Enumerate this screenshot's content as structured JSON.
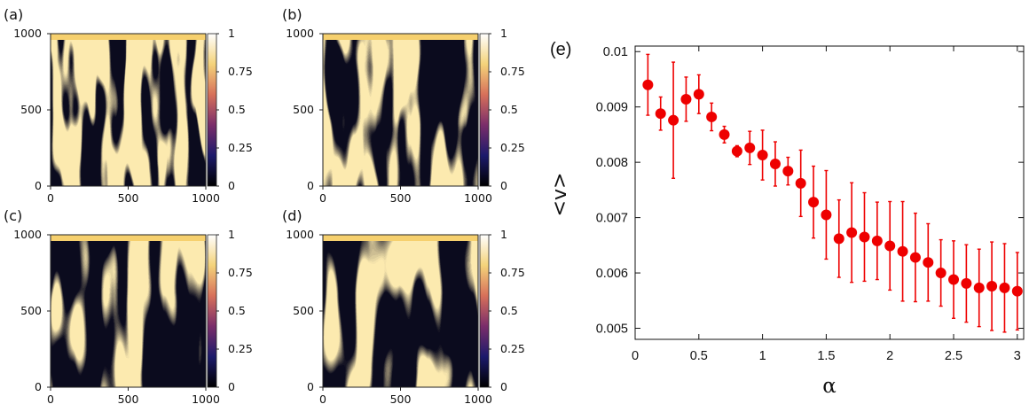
{
  "chart_data": [
    {
      "type": "heatmap",
      "tag": "(a)",
      "xticks": [
        "0",
        "500",
        "1000"
      ],
      "yticks": [
        "0",
        "500",
        "1000"
      ],
      "xlim": [
        0,
        1000
      ],
      "ylim": [
        0,
        1000
      ],
      "colorbar": {
        "ticks": [
          "0",
          "0.25",
          "0.5",
          "0.75",
          "1"
        ],
        "range": [
          0,
          1
        ],
        "colors": [
          "#000000",
          "#1c1a6b",
          "#7a2d6a",
          "#d7705a",
          "#f4d37a",
          "#ffffff"
        ]
      }
    },
    {
      "type": "heatmap",
      "tag": "(b)",
      "xticks": [
        "0",
        "500",
        "1000"
      ],
      "yticks": [
        "0",
        "500",
        "1000"
      ],
      "xlim": [
        0,
        1000
      ],
      "ylim": [
        0,
        1000
      ],
      "colorbar": {
        "ticks": [
          "0",
          "0.25",
          "0.5",
          "0.75",
          "1"
        ],
        "range": [
          0,
          1
        ],
        "colors": [
          "#000000",
          "#1c1a6b",
          "#7a2d6a",
          "#d7705a",
          "#f4d37a",
          "#ffffff"
        ]
      }
    },
    {
      "type": "heatmap",
      "tag": "(c)",
      "xticks": [
        "0",
        "500",
        "1000"
      ],
      "yticks": [
        "0",
        "500",
        "1000"
      ],
      "xlim": [
        0,
        1000
      ],
      "ylim": [
        0,
        1000
      ],
      "colorbar": {
        "ticks": [
          "0",
          "0.25",
          "0.5",
          "0.75",
          "1"
        ],
        "range": [
          0,
          1
        ],
        "colors": [
          "#000000",
          "#1c1a6b",
          "#7a2d6a",
          "#d7705a",
          "#f4d37a",
          "#ffffff"
        ]
      }
    },
    {
      "type": "heatmap",
      "tag": "(d)",
      "xticks": [
        "0",
        "500",
        "1000"
      ],
      "yticks": [
        "0",
        "500",
        "1000"
      ],
      "xlim": [
        0,
        1000
      ],
      "ylim": [
        0,
        1000
      ],
      "colorbar": {
        "ticks": [
          "0",
          "0.25",
          "0.5",
          "0.75",
          "1"
        ],
        "range": [
          0,
          1
        ],
        "colors": [
          "#000000",
          "#1c1a6b",
          "#7a2d6a",
          "#d7705a",
          "#f4d37a",
          "#ffffff"
        ]
      }
    },
    {
      "type": "scatter",
      "tag": "(e)",
      "xlabel": "α",
      "ylabel": "<v>",
      "xlim": [
        0,
        3.05
      ],
      "ylim": [
        0.0048,
        0.0101
      ],
      "xticks": [
        "0",
        "0.5",
        "1",
        "1.5",
        "2",
        "2.5",
        "3"
      ],
      "yticks": [
        "0.005",
        "0.006",
        "0.007",
        "0.008",
        "0.009",
        "0.01"
      ],
      "color": "#ee0000",
      "x": [
        0.1,
        0.2,
        0.3,
        0.4,
        0.5,
        0.6,
        0.7,
        0.8,
        0.9,
        1.0,
        1.1,
        1.2,
        1.3,
        1.4,
        1.5,
        1.6,
        1.7,
        1.8,
        1.9,
        2.0,
        2.1,
        2.2,
        2.3,
        2.4,
        2.5,
        2.6,
        2.7,
        2.8,
        2.9,
        3.0
      ],
      "y": [
        0.0094,
        0.00888,
        0.00876,
        0.00914,
        0.00923,
        0.00882,
        0.0085,
        0.0082,
        0.00826,
        0.00813,
        0.00797,
        0.00784,
        0.00762,
        0.00728,
        0.00705,
        0.00662,
        0.00673,
        0.00665,
        0.00658,
        0.00649,
        0.00639,
        0.00628,
        0.00619,
        0.006,
        0.00588,
        0.00581,
        0.00573,
        0.00576,
        0.00573,
        0.00567
      ],
      "yerr": [
        0.00055,
        0.0003,
        0.00105,
        0.0004,
        0.00035,
        0.00025,
        0.00015,
        0.0001,
        0.0003,
        0.00045,
        0.0004,
        0.00025,
        0.0006,
        0.00065,
        0.0008,
        0.0007,
        0.0009,
        0.0008,
        0.0007,
        0.0008,
        0.0009,
        0.0008,
        0.0007,
        0.0006,
        0.0007,
        0.0007,
        0.0007,
        0.0008,
        0.0008,
        0.0007
      ]
    }
  ]
}
